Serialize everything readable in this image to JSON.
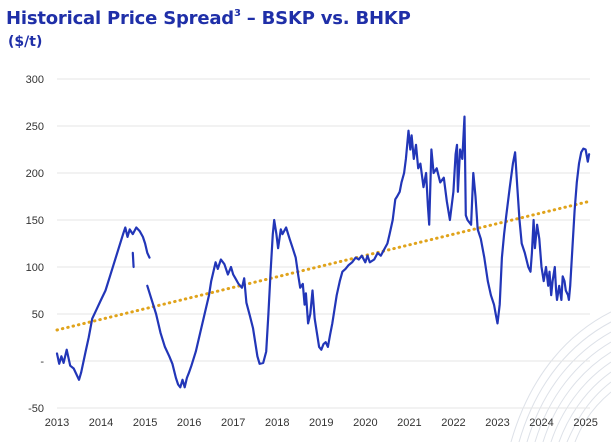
{
  "title": {
    "main": "Historical Price Spread",
    "superscript": "3",
    "rest": " – BSKP vs. BHKP"
  },
  "subtitle": "($/t)",
  "colors": {
    "title": "#1f2fa8",
    "series": "#2236b8",
    "trend": "#e0a31b",
    "grid": "#e6e6e6",
    "deco": "#dde1e8"
  },
  "chart_data": {
    "type": "line",
    "title": "Historical Price Spread³ – BSKP vs. BHKP",
    "ylabel": "($/t)",
    "xlabel": "",
    "ylim": [
      -50,
      300
    ],
    "xlim": [
      2013,
      2025.1
    ],
    "y_ticks": [
      "300",
      "250",
      "200",
      "150",
      "100",
      "50",
      "-",
      "-50"
    ],
    "y_tick_values": [
      300,
      250,
      200,
      150,
      100,
      50,
      0,
      -50
    ],
    "x_ticks": [
      "2013",
      "2014",
      "2015",
      "2016",
      "2017",
      "2018",
      "2019",
      "2020",
      "2021",
      "2022",
      "2023",
      "2024",
      "2025"
    ],
    "x_tick_values": [
      2013,
      2014,
      2015,
      2016,
      2017,
      2018,
      2019,
      2020,
      2021,
      2022,
      2023,
      2024,
      2025
    ],
    "grid": "horizontal",
    "series": [
      {
        "style": "solid",
        "segments": [
          [
            [
              2013.0,
              8
            ],
            [
              2013.05,
              -3
            ],
            [
              2013.1,
              5
            ],
            [
              2013.15,
              -2
            ],
            [
              2013.22,
              12
            ],
            [
              2013.3,
              -5
            ],
            [
              2013.38,
              -8
            ],
            [
              2013.5,
              -20
            ],
            [
              2013.55,
              -12
            ],
            [
              2013.65,
              10
            ],
            [
              2013.72,
              25
            ],
            [
              2013.8,
              45
            ],
            [
              2013.9,
              55
            ],
            [
              2014.0,
              65
            ],
            [
              2014.1,
              75
            ],
            [
              2014.2,
              90
            ],
            [
              2014.3,
              105
            ],
            [
              2014.4,
              120
            ],
            [
              2014.5,
              135
            ],
            [
              2014.55,
              142
            ],
            [
              2014.6,
              132
            ],
            [
              2014.65,
              140
            ],
            [
              2014.72,
              135
            ],
            [
              2014.8,
              142
            ],
            [
              2014.88,
              138
            ],
            [
              2014.95,
              132
            ],
            [
              2015.0,
              125
            ],
            [
              2015.05,
              115
            ],
            [
              2015.1,
              110
            ]
          ],
          [
            [
              2014.72,
              115
            ],
            [
              2014.74,
              100
            ]
          ],
          [
            [
              2015.05,
              80
            ],
            [
              2015.15,
              65
            ],
            [
              2015.25,
              50
            ],
            [
              2015.35,
              30
            ],
            [
              2015.45,
              15
            ],
            [
              2015.55,
              5
            ],
            [
              2015.62,
              -3
            ],
            [
              2015.7,
              -18
            ],
            [
              2015.75,
              -25
            ],
            [
              2015.8,
              -28
            ],
            [
              2015.85,
              -20
            ],
            [
              2015.9,
              -28
            ],
            [
              2015.95,
              -18
            ],
            [
              2016.0,
              -12
            ],
            [
              2016.05,
              -5
            ],
            [
              2016.15,
              10
            ],
            [
              2016.25,
              30
            ],
            [
              2016.35,
              50
            ],
            [
              2016.45,
              70
            ],
            [
              2016.5,
              85
            ],
            [
              2016.55,
              95
            ],
            [
              2016.6,
              105
            ],
            [
              2016.65,
              98
            ],
            [
              2016.72,
              108
            ],
            [
              2016.8,
              103
            ],
            [
              2016.88,
              92
            ],
            [
              2016.95,
              100
            ],
            [
              2017.0,
              92
            ],
            [
              2017.05,
              88
            ],
            [
              2017.12,
              82
            ],
            [
              2017.2,
              78
            ],
            [
              2017.25,
              88
            ],
            [
              2017.3,
              62
            ],
            [
              2017.38,
              48
            ],
            [
              2017.45,
              35
            ],
            [
              2017.5,
              20
            ],
            [
              2017.55,
              5
            ],
            [
              2017.6,
              -3
            ],
            [
              2017.68,
              -2
            ],
            [
              2017.75,
              10
            ],
            [
              2017.8,
              50
            ],
            [
              2017.85,
              95
            ],
            [
              2017.9,
              135
            ],
            [
              2017.93,
              150
            ],
            [
              2017.98,
              135
            ],
            [
              2018.02,
              120
            ],
            [
              2018.08,
              140
            ],
            [
              2018.12,
              135
            ],
            [
              2018.2,
              142
            ],
            [
              2018.28,
              130
            ],
            [
              2018.35,
              120
            ],
            [
              2018.42,
              110
            ],
            [
              2018.48,
              90
            ],
            [
              2018.52,
              78
            ],
            [
              2018.58,
              82
            ],
            [
              2018.62,
              60
            ],
            [
              2018.65,
              72
            ],
            [
              2018.7,
              40
            ],
            [
              2018.75,
              50
            ],
            [
              2018.8,
              75
            ],
            [
              2018.85,
              45
            ],
            [
              2018.9,
              30
            ],
            [
              2018.95,
              15
            ],
            [
              2019.0,
              12
            ],
            [
              2019.05,
              18
            ],
            [
              2019.1,
              20
            ],
            [
              2019.15,
              15
            ],
            [
              2019.2,
              28
            ],
            [
              2019.25,
              40
            ],
            [
              2019.3,
              55
            ],
            [
              2019.35,
              70
            ],
            [
              2019.42,
              85
            ],
            [
              2019.48,
              95
            ],
            [
              2019.55,
              98
            ],
            [
              2019.62,
              102
            ],
            [
              2019.7,
              105
            ],
            [
              2019.78,
              110
            ],
            [
              2019.85,
              108
            ],
            [
              2019.92,
              112
            ],
            [
              2020.0,
              105
            ],
            [
              2020.05,
              112
            ],
            [
              2020.1,
              105
            ],
            [
              2020.2,
              108
            ],
            [
              2020.28,
              115
            ],
            [
              2020.35,
              112
            ],
            [
              2020.42,
              118
            ],
            [
              2020.5,
              125
            ],
            [
              2020.55,
              135
            ],
            [
              2020.62,
              150
            ],
            [
              2020.68,
              172
            ],
            [
              2020.72,
              175
            ],
            [
              2020.78,
              180
            ],
            [
              2020.82,
              190
            ],
            [
              2020.88,
              200
            ],
            [
              2020.92,
              215
            ],
            [
              2020.95,
              230
            ],
            [
              2020.98,
              245
            ],
            [
              2021.02,
              225
            ],
            [
              2021.05,
              240
            ],
            [
              2021.1,
              215
            ],
            [
              2021.15,
              230
            ],
            [
              2021.2,
              205
            ],
            [
              2021.25,
              210
            ],
            [
              2021.32,
              185
            ],
            [
              2021.38,
              200
            ],
            [
              2021.42,
              165
            ],
            [
              2021.45,
              145
            ],
            [
              2021.5,
              225
            ],
            [
              2021.55,
              200
            ],
            [
              2021.62,
              205
            ],
            [
              2021.7,
              190
            ],
            [
              2021.78,
              195
            ],
            [
              2021.85,
              170
            ],
            [
              2021.92,
              150
            ],
            [
              2022.0,
              180
            ],
            [
              2022.05,
              220
            ],
            [
              2022.08,
              230
            ],
            [
              2022.1,
              180
            ],
            [
              2022.15,
              225
            ],
            [
              2022.2,
              215
            ],
            [
              2022.25,
              260
            ],
            [
              2022.28,
              155
            ],
            [
              2022.32,
              150
            ],
            [
              2022.4,
              145
            ],
            [
              2022.45,
              200
            ],
            [
              2022.5,
              175
            ],
            [
              2022.55,
              140
            ],
            [
              2022.62,
              130
            ],
            [
              2022.7,
              110
            ],
            [
              2022.78,
              85
            ],
            [
              2022.85,
              70
            ],
            [
              2022.92,
              60
            ],
            [
              2022.96,
              50
            ],
            [
              2023.0,
              40
            ],
            [
              2023.05,
              60
            ],
            [
              2023.1,
              110
            ],
            [
              2023.15,
              135
            ],
            [
              2023.2,
              155
            ],
            [
              2023.28,
              185
            ],
            [
              2023.35,
              210
            ],
            [
              2023.4,
              222
            ],
            [
              2023.45,
              185
            ],
            [
              2023.5,
              150
            ],
            [
              2023.55,
              125
            ],
            [
              2023.62,
              115
            ],
            [
              2023.7,
              100
            ],
            [
              2023.75,
              95
            ],
            [
              2023.78,
              115
            ],
            [
              2023.82,
              150
            ],
            [
              2023.85,
              120
            ],
            [
              2023.9,
              145
            ],
            [
              2023.95,
              130
            ],
            [
              2024.0,
              100
            ],
            [
              2024.05,
              85
            ],
            [
              2024.1,
              100
            ],
            [
              2024.15,
              80
            ],
            [
              2024.18,
              95
            ],
            [
              2024.22,
              70
            ],
            [
              2024.25,
              85
            ],
            [
              2024.3,
              100
            ],
            [
              2024.33,
              75
            ],
            [
              2024.35,
              65
            ],
            [
              2024.4,
              80
            ],
            [
              2024.45,
              65
            ],
            [
              2024.48,
              90
            ],
            [
              2024.52,
              85
            ],
            [
              2024.55,
              75
            ],
            [
              2024.6,
              70
            ],
            [
              2024.62,
              65
            ],
            [
              2024.65,
              80
            ],
            [
              2024.7,
              120
            ],
            [
              2024.75,
              160
            ],
            [
              2024.8,
              190
            ],
            [
              2024.85,
              210
            ],
            [
              2024.9,
              222
            ],
            [
              2024.95,
              226
            ],
            [
              2025.0,
              225
            ],
            [
              2025.05,
              212
            ],
            [
              2025.08,
              220
            ]
          ]
        ]
      }
    ],
    "trendline": {
      "style": "dotted",
      "points": [
        [
          2013.0,
          33
        ],
        [
          2025.1,
          170
        ]
      ]
    }
  }
}
